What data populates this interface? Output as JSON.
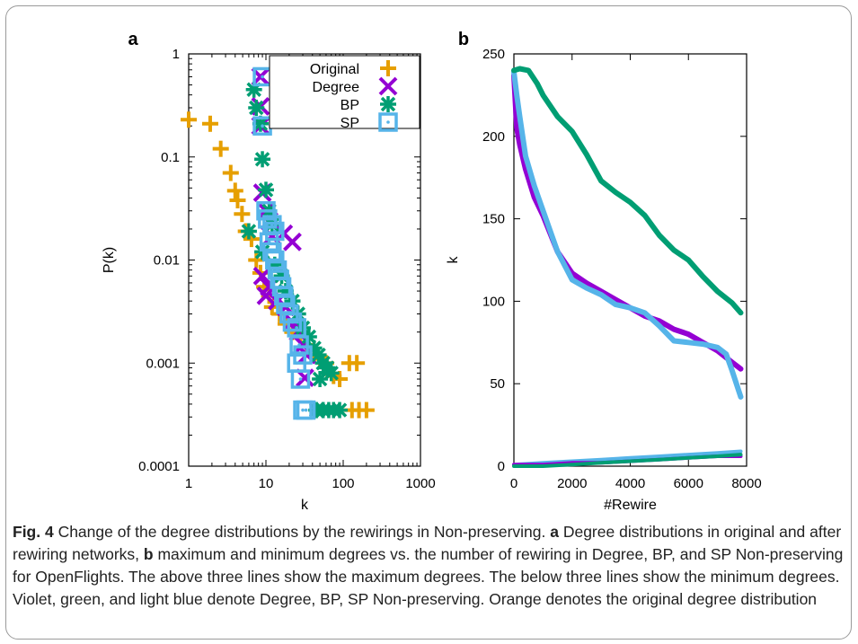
{
  "colors": {
    "original": "#e69f00",
    "degree": "#9400d3",
    "bp": "#009e73",
    "sp": "#56b4e9"
  },
  "chart_data": [
    {
      "panel": "a",
      "type": "scatter",
      "xlabel": "k",
      "ylabel": "P(k)",
      "x_scale": "log",
      "y_scale": "log",
      "xlim": [
        1,
        1000
      ],
      "ylim": [
        0.0001,
        1
      ],
      "x_ticks": [
        "1",
        "10",
        "100",
        "1000"
      ],
      "y_ticks": [
        "0.0001",
        "0.001",
        "0.01",
        "0.1",
        "1"
      ],
      "legend_position": "top-right",
      "series": [
        {
          "name": "Original",
          "points": [
            [
              1,
              0.23
            ],
            [
              1.9,
              0.21
            ],
            [
              2.6,
              0.12
            ],
            [
              3.5,
              0.07
            ],
            [
              4,
              0.047
            ],
            [
              4.3,
              0.038
            ],
            [
              4.9,
              0.028
            ],
            [
              5.5,
              0.019
            ],
            [
              6.5,
              0.016
            ],
            [
              7.5,
              0.01
            ],
            [
              8.5,
              0.0075
            ],
            [
              9.5,
              0.0055
            ],
            [
              11,
              0.0045
            ],
            [
              12,
              0.0035
            ],
            [
              15,
              0.003
            ],
            [
              18,
              0.0024
            ],
            [
              22,
              0.002
            ],
            [
              28,
              0.0018
            ],
            [
              34,
              0.0015
            ],
            [
              42,
              0.0012
            ],
            [
              50,
              0.0011
            ],
            [
              60,
              0.001
            ],
            [
              75,
              0.00075
            ],
            [
              90,
              0.0007
            ],
            [
              120,
              0.001
            ],
            [
              150,
              0.001
            ],
            [
              130,
              0.00035
            ],
            [
              160,
              0.00035
            ],
            [
              200,
              0.00035
            ]
          ]
        },
        {
          "name": "Degree",
          "points": [
            [
              8.5,
              0.6
            ],
            [
              8.5,
              0.31
            ],
            [
              8.5,
              0.2
            ],
            [
              9,
              0.045
            ],
            [
              10,
              0.03
            ],
            [
              11,
              0.024
            ],
            [
              12,
              0.017
            ],
            [
              17,
              0.018
            ],
            [
              22,
              0.015
            ],
            [
              9,
              0.007
            ],
            [
              10,
              0.0045
            ],
            [
              11,
              0.0055
            ],
            [
              14,
              0.004
            ],
            [
              18,
              0.0035
            ],
            [
              22,
              0.0025
            ],
            [
              26,
              0.002
            ],
            [
              30,
              0.0015
            ],
            [
              34,
              0.0012
            ],
            [
              32,
              0.00072
            ]
          ]
        },
        {
          "name": "BP",
          "points": [
            [
              7,
              0.45
            ],
            [
              7.5,
              0.3
            ],
            [
              8.5,
              0.21
            ],
            [
              9,
              0.095
            ],
            [
              10,
              0.048
            ],
            [
              11,
              0.03
            ],
            [
              12,
              0.022
            ],
            [
              6,
              0.019
            ],
            [
              9,
              0.012
            ],
            [
              13,
              0.009
            ],
            [
              16,
              0.007
            ],
            [
              18,
              0.005
            ],
            [
              22,
              0.004
            ],
            [
              26,
              0.003
            ],
            [
              30,
              0.0022
            ],
            [
              36,
              0.0018
            ],
            [
              42,
              0.0014
            ],
            [
              48,
              0.0012
            ],
            [
              55,
              0.001
            ],
            [
              62,
              0.0009
            ],
            [
              70,
              0.0008
            ],
            [
              50,
              0.0007
            ],
            [
              45,
              0.00035
            ],
            [
              55,
              0.00035
            ],
            [
              65,
              0.00035
            ],
            [
              75,
              0.00035
            ],
            [
              90,
              0.00035
            ]
          ]
        },
        {
          "name": "SP",
          "points": [
            [
              9,
              0.6
            ],
            [
              9,
              0.2
            ],
            [
              10,
              0.03
            ],
            [
              10.5,
              0.025
            ],
            [
              12,
              0.022
            ],
            [
              13,
              0.019
            ],
            [
              11,
              0.015
            ],
            [
              12,
              0.012
            ],
            [
              13,
              0.01
            ],
            [
              14,
              0.008
            ],
            [
              15,
              0.0065
            ],
            [
              16,
              0.0055
            ],
            [
              17,
              0.0045
            ],
            [
              18,
              0.0037
            ],
            [
              20,
              0.003
            ],
            [
              22,
              0.0025
            ],
            [
              25,
              0.0022
            ],
            [
              27,
              0.0015
            ],
            [
              30,
              0.0012
            ],
            [
              25,
              0.001
            ],
            [
              28,
              0.0007
            ],
            [
              30,
              0.00035
            ],
            [
              33,
              0.00035
            ]
          ]
        }
      ]
    },
    {
      "panel": "b",
      "type": "line",
      "xlabel": "#Rewire",
      "ylabel": "k",
      "xlim": [
        0,
        8000
      ],
      "ylim": [
        0,
        250
      ],
      "x_ticks": [
        "0",
        "2000",
        "4000",
        "6000",
        "8000"
      ],
      "y_ticks": [
        "0",
        "50",
        "100",
        "150",
        "200",
        "250"
      ],
      "series": [
        {
          "group": "Degree",
          "kind": "max",
          "x": [
            0,
            100,
            200,
            400,
            700,
            1000,
            1500,
            2000,
            2500,
            3000,
            3500,
            4000,
            4500,
            5000,
            5500,
            6000,
            6500,
            7000,
            7500,
            7800
          ],
          "y": [
            237,
            205,
            195,
            180,
            163,
            152,
            130,
            117,
            111,
            106,
            101,
            96,
            91,
            88,
            83,
            80,
            75,
            70,
            63,
            59
          ]
        },
        {
          "group": "BP",
          "kind": "max",
          "x": [
            0,
            200,
            500,
            800,
            1000,
            1500,
            2000,
            2500,
            3000,
            3500,
            4000,
            4500,
            5000,
            5500,
            6000,
            6500,
            7000,
            7500,
            7800
          ],
          "y": [
            240,
            241,
            240,
            232,
            225,
            212,
            203,
            189,
            173,
            166,
            160,
            152,
            140,
            131,
            125,
            115,
            106,
            99,
            93
          ]
        },
        {
          "group": "SP",
          "kind": "max",
          "x": [
            0,
            100,
            200,
            400,
            700,
            1000,
            1500,
            2000,
            2500,
            3000,
            3500,
            4000,
            4500,
            5000,
            5500,
            6000,
            6500,
            7000,
            7300,
            7500,
            7800
          ],
          "y": [
            239,
            225,
            212,
            188,
            170,
            155,
            130,
            113,
            108,
            104,
            98,
            96,
            93,
            85,
            76,
            75,
            74,
            72,
            68,
            58,
            42
          ]
        },
        {
          "group": "Degree",
          "kind": "min",
          "x": [
            0,
            1000,
            2000,
            3000,
            4000,
            5000,
            6000,
            7000,
            7800
          ],
          "y": [
            1,
            1,
            2,
            2,
            3,
            4,
            5,
            6,
            6
          ]
        },
        {
          "group": "BP",
          "kind": "min",
          "x": [
            0,
            1000,
            2000,
            3000,
            4000,
            5000,
            6000,
            7000,
            7800
          ],
          "y": [
            0,
            0,
            1,
            2,
            3,
            4,
            5,
            6,
            7
          ]
        },
        {
          "group": "SP",
          "kind": "min",
          "x": [
            0,
            1000,
            2000,
            3000,
            4000,
            5000,
            6000,
            7000,
            7800
          ],
          "y": [
            1,
            2,
            3,
            4,
            5,
            6,
            7,
            8,
            9
          ]
        }
      ]
    }
  ],
  "caption": {
    "label": "Fig. 4",
    "part1": "  Change of the degree distributions by the rewirings in Non-preserving. ",
    "ref_a": "a",
    "part2": " Degree distributions in original and after rewiring networks, ",
    "ref_b": "b",
    "part3": " maximum and minimum degrees vs. the number of rewiring in Degree, BP, and SP Non-preserving for OpenFlights. The above three lines show the maximum degrees. The below three lines show the minimum degrees. Violet, green, and light blue denote Degree, BP, SP Non-preserving. Orange denotes the original degree distribution"
  }
}
